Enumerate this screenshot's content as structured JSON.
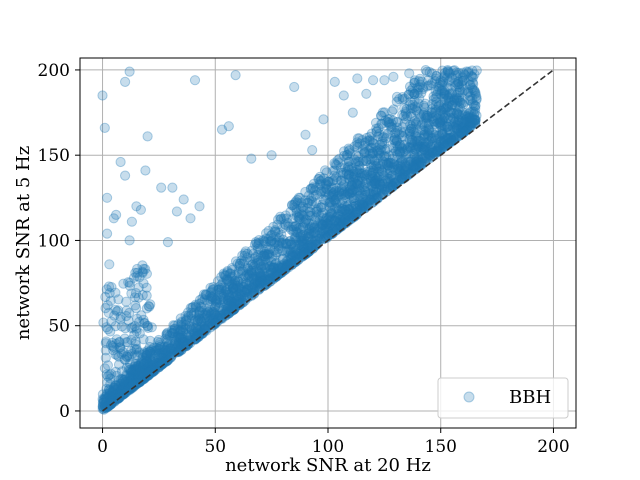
{
  "chart_data": {
    "type": "scatter",
    "title": "",
    "xlabel": "network SNR at 20 Hz",
    "ylabel": "network SNR at 5 Hz",
    "xlim": [
      -10,
      210
    ],
    "ylim": [
      -10,
      207
    ],
    "xticks": [
      0,
      50,
      100,
      150,
      200
    ],
    "yticks": [
      0,
      50,
      100,
      150,
      200
    ],
    "grid": true,
    "legend_position": "bottom-right",
    "point_color": "#1f77b4",
    "point_alpha": 0.25,
    "reference_line": {
      "style": "dashed",
      "color": "#333333",
      "x": [
        0,
        200
      ],
      "y": [
        0,
        200
      ]
    },
    "series": [
      {
        "name": "BBH",
        "main_band": {
          "x_range": [
            0,
            166
          ],
          "lower_edge_slope": 1.02,
          "upper_edge_slope": 1.35,
          "upper_cap": 200
        },
        "outliers": {
          "x": [
            0,
            1,
            2,
            10,
            12,
            8,
            20,
            10,
            5,
            3,
            6,
            19,
            13,
            2,
            12,
            15,
            17,
            26,
            31,
            36,
            41,
            33,
            43,
            39,
            29,
            53,
            56,
            59,
            66,
            75,
            85,
            98,
            103,
            113,
            125,
            117,
            136,
            129,
            90,
            93,
            107,
            111,
            120
          ],
          "y": [
            185,
            166,
            125,
            193,
            199,
            146,
            161,
            138,
            113,
            86,
            115,
            141,
            111,
            104,
            100,
            120,
            118,
            131,
            131,
            124,
            194,
            117,
            120,
            113,
            99,
            165,
            167,
            197,
            148,
            150,
            190,
            171,
            193,
            195,
            194,
            186,
            198,
            196,
            162,
            153,
            185,
            175,
            194
          ]
        }
      }
    ]
  }
}
